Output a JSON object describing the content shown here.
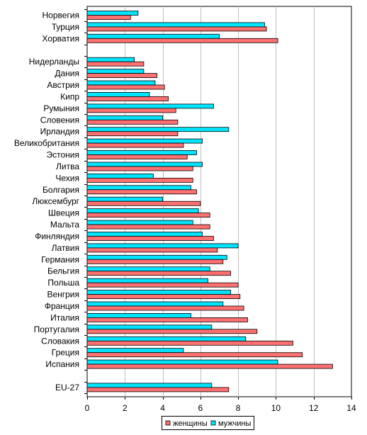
{
  "chart_data": {
    "type": "bar",
    "orientation": "horizontal",
    "categories": [
      "Норвегия",
      "Турция",
      "Хорватия",
      "",
      "Нидерланды",
      "Дания",
      "Австрия",
      "Кипр",
      "Румыния",
      "Словения",
      "Ирландия",
      "Великобритания",
      "Эстония",
      "Литва",
      "Чехия",
      "Болгария",
      "Люксембург",
      "Швеция",
      "Мальта",
      "Финляндия",
      "Латвия",
      "Германия",
      "Бельгия",
      "Польша",
      "Венгрия",
      "Франция",
      "Италия",
      "Португалия",
      "Словакия",
      "Греция",
      "Испания",
      "",
      "EU-27"
    ],
    "series": [
      {
        "name": "мужчины",
        "color": "#00e5ff",
        "values": [
          2.7,
          9.4,
          7.0,
          null,
          2.5,
          3.0,
          3.6,
          3.3,
          6.7,
          4.0,
          7.5,
          6.1,
          5.8,
          6.1,
          3.5,
          5.5,
          4.0,
          5.9,
          5.6,
          6.1,
          8.0,
          7.4,
          6.5,
          6.4,
          7.6,
          7.2,
          5.5,
          6.6,
          8.4,
          5.1,
          10.1,
          null,
          6.6
        ]
      },
      {
        "name": "женщины",
        "color": "#ff7070",
        "values": [
          2.3,
          9.5,
          10.1,
          null,
          3.0,
          3.7,
          4.1,
          4.3,
          4.7,
          4.8,
          4.8,
          5.1,
          5.3,
          5.6,
          5.6,
          5.8,
          6.0,
          6.5,
          6.5,
          6.7,
          6.9,
          7.2,
          7.6,
          8.0,
          8.1,
          8.3,
          8.5,
          9.0,
          10.9,
          11.4,
          13.0,
          null,
          7.5
        ]
      }
    ],
    "xlim": [
      0,
      14
    ],
    "xticks": [
      "0",
      "2",
      "4",
      "6",
      "8",
      "10",
      "12",
      "14"
    ],
    "grid": "vertical",
    "legend_position": "bottom-center",
    "title": "",
    "xlabel": "",
    "ylabel": ""
  }
}
